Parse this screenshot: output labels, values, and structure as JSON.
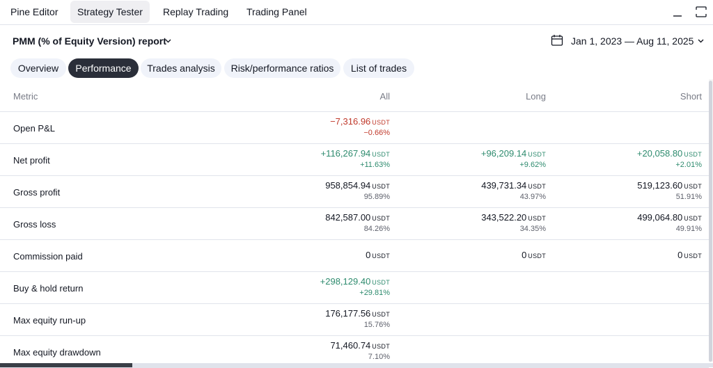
{
  "top_tabs": [
    {
      "label": "Pine Editor"
    },
    {
      "label": "Strategy Tester"
    },
    {
      "label": "Replay Trading"
    },
    {
      "label": "Trading Panel"
    }
  ],
  "report": {
    "title": "PMM (% of Equity Version) report",
    "date_range": "Jan 1, 2023 — Aug 11, 2025"
  },
  "sub_tabs": [
    {
      "label": "Overview"
    },
    {
      "label": "Performance"
    },
    {
      "label": "Trades analysis"
    },
    {
      "label": "Risk/performance ratios"
    },
    {
      "label": "List of trades"
    }
  ],
  "table": {
    "headers": {
      "metric": "Metric",
      "all": "All",
      "long": "Long",
      "short": "Short"
    },
    "rows": [
      {
        "metric": "Open P&L",
        "all": {
          "value": "−7,316.96",
          "unit": "USDT",
          "pct": "−0.66%",
          "tone": "neg"
        },
        "long": null,
        "short": null
      },
      {
        "metric": "Net profit",
        "all": {
          "value": "+116,267.94",
          "unit": "USDT",
          "pct": "+11.63%",
          "tone": "pos"
        },
        "long": {
          "value": "+96,209.14",
          "unit": "USDT",
          "pct": "+9.62%",
          "tone": "pos"
        },
        "short": {
          "value": "+20,058.80",
          "unit": "USDT",
          "pct": "+2.01%",
          "tone": "pos"
        }
      },
      {
        "metric": "Gross profit",
        "all": {
          "value": "958,854.94",
          "unit": "USDT",
          "pct": "95.89%",
          "tone": "neutral"
        },
        "long": {
          "value": "439,731.34",
          "unit": "USDT",
          "pct": "43.97%",
          "tone": "neutral"
        },
        "short": {
          "value": "519,123.60",
          "unit": "USDT",
          "pct": "51.91%",
          "tone": "neutral"
        }
      },
      {
        "metric": "Gross loss",
        "all": {
          "value": "842,587.00",
          "unit": "USDT",
          "pct": "84.26%",
          "tone": "neutral"
        },
        "long": {
          "value": "343,522.20",
          "unit": "USDT",
          "pct": "34.35%",
          "tone": "neutral"
        },
        "short": {
          "value": "499,064.80",
          "unit": "USDT",
          "pct": "49.91%",
          "tone": "neutral"
        }
      },
      {
        "metric": "Commission paid",
        "all": {
          "value": "0",
          "unit": "USDT",
          "pct": "",
          "tone": "neutral"
        },
        "long": {
          "value": "0",
          "unit": "USDT",
          "pct": "",
          "tone": "neutral"
        },
        "short": {
          "value": "0",
          "unit": "USDT",
          "pct": "",
          "tone": "neutral"
        }
      },
      {
        "metric": "Buy & hold return",
        "all": {
          "value": "+298,129.40",
          "unit": "USDT",
          "pct": "+29.81%",
          "tone": "pos"
        },
        "long": null,
        "short": null
      },
      {
        "metric": "Max equity run-up",
        "all": {
          "value": "176,177.56",
          "unit": "USDT",
          "pct": "15.76%",
          "tone": "neutral"
        },
        "long": null,
        "short": null
      },
      {
        "metric": "Max equity drawdown",
        "all": {
          "value": "71,460.74",
          "unit": "USDT",
          "pct": "7.10%",
          "tone": "neutral"
        },
        "long": null,
        "short": null
      }
    ]
  },
  "icons": {
    "calendar": "calendar-icon",
    "minimize": "minimize-icon",
    "maximize": "maximize-icon",
    "chevron": "chevron-down-icon"
  },
  "colors": {
    "negative": "#c0392b",
    "positive": "#2e8b6e",
    "active_pill": "#2a2e39"
  }
}
